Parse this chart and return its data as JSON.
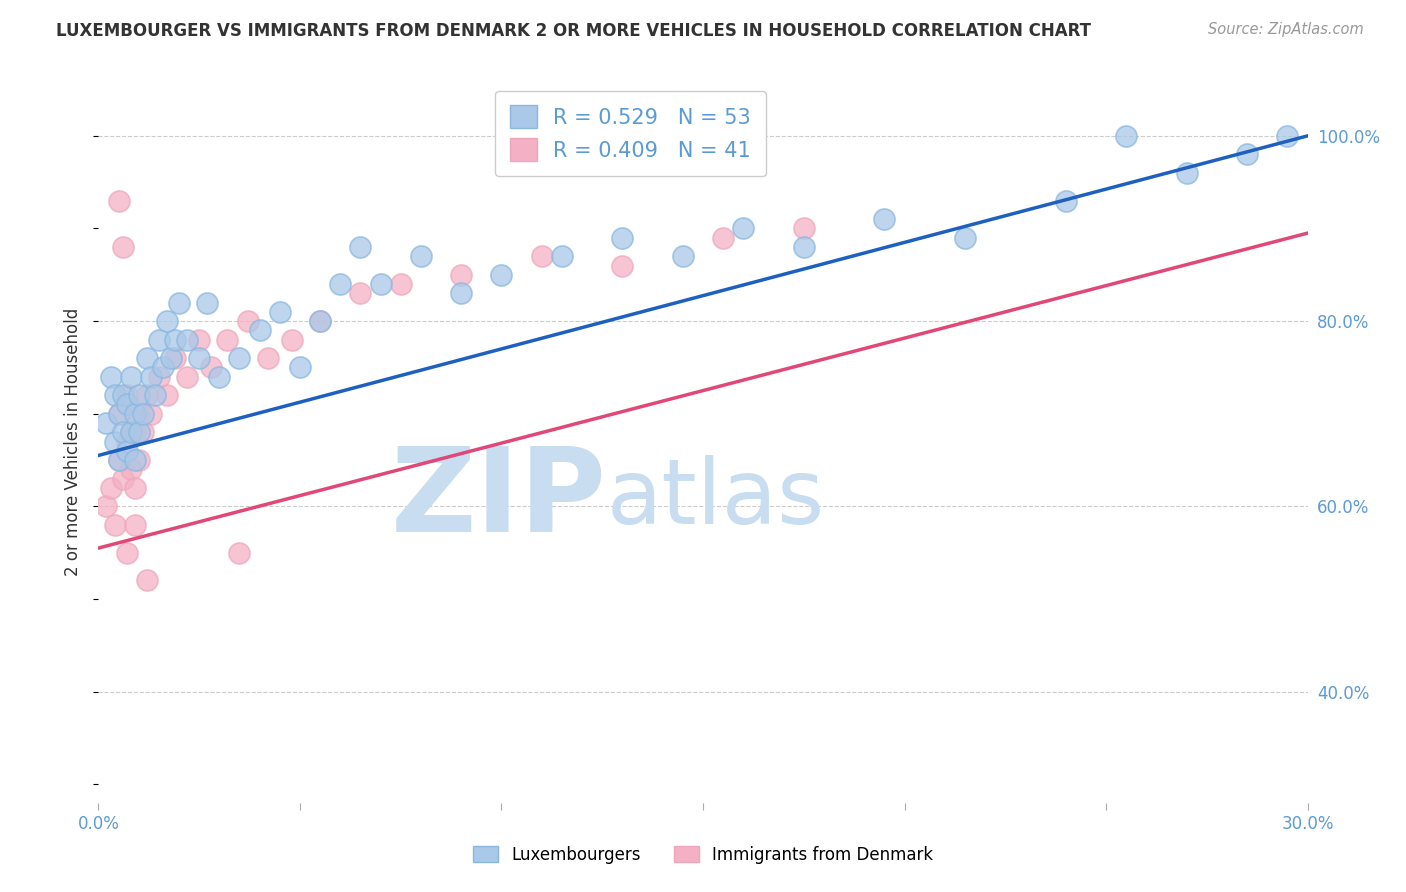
{
  "title": "LUXEMBOURGER VS IMMIGRANTS FROM DENMARK 2 OR MORE VEHICLES IN HOUSEHOLD CORRELATION CHART",
  "source": "Source: ZipAtlas.com",
  "ylabel": "2 or more Vehicles in Household",
  "xlim": [
    0.0,
    0.3
  ],
  "ylim": [
    0.28,
    1.06
  ],
  "xticks": [
    0.0,
    0.05,
    0.1,
    0.15,
    0.2,
    0.25,
    0.3
  ],
  "xtick_labels": [
    "0.0%",
    "",
    "",
    "",
    "",
    "",
    "30.0%"
  ],
  "ytick_vals": [
    0.4,
    0.6,
    0.8,
    1.0
  ],
  "ytick_labels": [
    "40.0%",
    "60.0%",
    "80.0%",
    "100.0%"
  ],
  "blue_R": 0.529,
  "blue_N": 53,
  "pink_R": 0.409,
  "pink_N": 41,
  "blue_fill": "#aac8e8",
  "pink_fill": "#f4b0c4",
  "blue_edge": "#88b8e0",
  "pink_edge": "#eda8bc",
  "blue_line": "#1e60c0",
  "pink_line": "#e04878",
  "watermark_zip": "ZIP",
  "watermark_atlas": "atlas",
  "watermark_color": "#c8ddf0",
  "legend_label_blue": "Luxembourgers",
  "legend_label_pink": "Immigrants from Denmark",
  "blue_x": [
    0.002,
    0.003,
    0.004,
    0.004,
    0.005,
    0.005,
    0.006,
    0.006,
    0.007,
    0.007,
    0.008,
    0.008,
    0.009,
    0.009,
    0.01,
    0.01,
    0.011,
    0.012,
    0.013,
    0.014,
    0.015,
    0.016,
    0.017,
    0.018,
    0.019,
    0.02,
    0.022,
    0.025,
    0.027,
    0.03,
    0.035,
    0.04,
    0.045,
    0.05,
    0.055,
    0.06,
    0.065,
    0.07,
    0.08,
    0.09,
    0.1,
    0.115,
    0.13,
    0.145,
    0.16,
    0.175,
    0.195,
    0.215,
    0.24,
    0.255,
    0.27,
    0.285,
    0.295
  ],
  "blue_y": [
    0.69,
    0.74,
    0.72,
    0.67,
    0.65,
    0.7,
    0.68,
    0.72,
    0.66,
    0.71,
    0.68,
    0.74,
    0.7,
    0.65,
    0.72,
    0.68,
    0.7,
    0.76,
    0.74,
    0.72,
    0.78,
    0.75,
    0.8,
    0.76,
    0.78,
    0.82,
    0.78,
    0.76,
    0.82,
    0.74,
    0.76,
    0.79,
    0.81,
    0.75,
    0.8,
    0.84,
    0.88,
    0.84,
    0.87,
    0.83,
    0.85,
    0.87,
    0.89,
    0.87,
    0.9,
    0.88,
    0.91,
    0.89,
    0.93,
    1.0,
    0.96,
    0.98,
    1.0
  ],
  "pink_x": [
    0.002,
    0.003,
    0.004,
    0.005,
    0.005,
    0.006,
    0.007,
    0.007,
    0.008,
    0.008,
    0.009,
    0.009,
    0.01,
    0.01,
    0.011,
    0.012,
    0.013,
    0.015,
    0.017,
    0.019,
    0.022,
    0.025,
    0.028,
    0.032,
    0.037,
    0.042,
    0.048,
    0.055,
    0.065,
    0.075,
    0.09,
    0.11,
    0.13,
    0.155,
    0.175,
    0.005,
    0.006,
    0.007,
    0.009,
    0.012,
    0.035
  ],
  "pink_y": [
    0.6,
    0.62,
    0.58,
    0.65,
    0.7,
    0.63,
    0.67,
    0.72,
    0.64,
    0.68,
    0.62,
    0.68,
    0.65,
    0.7,
    0.68,
    0.72,
    0.7,
    0.74,
    0.72,
    0.76,
    0.74,
    0.78,
    0.75,
    0.78,
    0.8,
    0.76,
    0.78,
    0.8,
    0.83,
    0.84,
    0.85,
    0.87,
    0.86,
    0.89,
    0.9,
    0.93,
    0.88,
    0.55,
    0.58,
    0.52,
    0.55
  ],
  "grid_color": "#cccccc",
  "bg": "#ffffff",
  "text_color": "#333333",
  "tick_color": "#5b9bd5",
  "source_color": "#999999"
}
